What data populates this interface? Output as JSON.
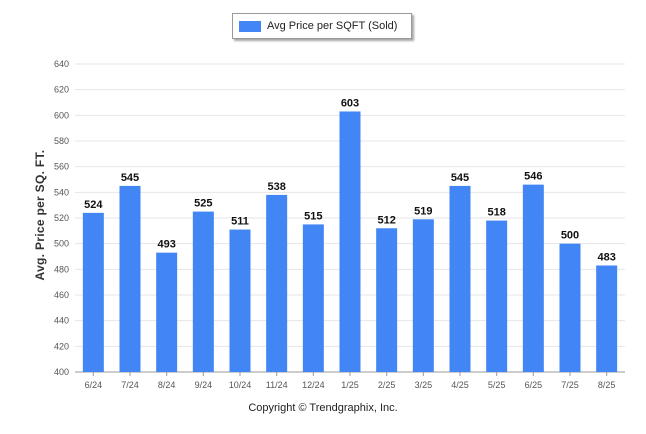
{
  "legend": {
    "label": "Avg Price per SQFT (Sold)"
  },
  "credit": "Copyright © Trendgraphix, Inc.",
  "colors": {
    "bar": "#4285F4",
    "grid": "#e6e6e6",
    "axis": "#999999"
  },
  "chart_data": {
    "type": "bar",
    "title": "",
    "xlabel": "",
    "ylabel": "Avg. Price per SQ. FT.",
    "ylim": [
      400,
      640
    ],
    "yticks": [
      400,
      420,
      440,
      460,
      480,
      500,
      520,
      540,
      560,
      580,
      600,
      620,
      640
    ],
    "grid": true,
    "legend_position": "top-center",
    "categories": [
      "6/24",
      "7/24",
      "8/24",
      "9/24",
      "10/24",
      "11/24",
      "12/24",
      "1/25",
      "2/25",
      "3/25",
      "4/25",
      "5/25",
      "6/25",
      "7/25",
      "8/25"
    ],
    "series": [
      {
        "name": "Avg Price per SQFT (Sold)",
        "values": [
          524,
          545,
          493,
          525,
          511,
          538,
          515,
          603,
          512,
          519,
          545,
          518,
          546,
          500,
          483
        ]
      }
    ]
  }
}
